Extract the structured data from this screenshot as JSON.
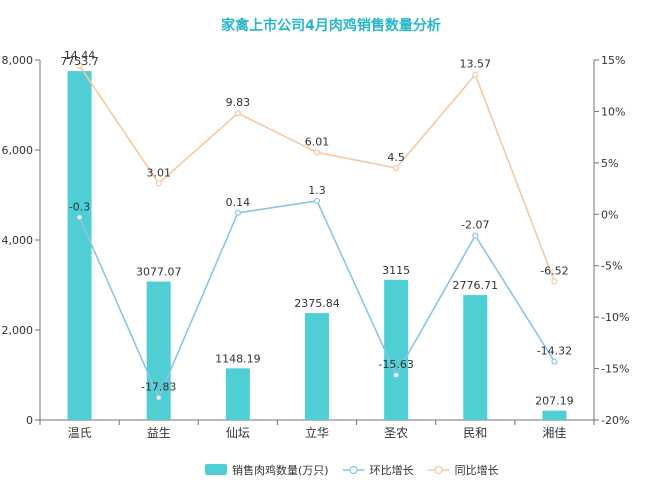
{
  "chart_data": {
    "type": "bar",
    "title": "家禽上市公司4月肉鸡销售数量分析",
    "categories": [
      "温氏",
      "益生",
      "仙坛",
      "立华",
      "圣农",
      "民和",
      "湘佳"
    ],
    "series": [
      {
        "name": "销售肉鸡数量(万只)",
        "type": "bar",
        "axis": "left",
        "color": "#4fcfd3",
        "values": [
          7753.7,
          3077.07,
          1148.19,
          2375.84,
          3115,
          2776.71,
          207.19
        ],
        "labels": [
          "7753.7",
          "3077.07",
          "1148.19",
          "2375.84",
          "3115",
          "2776.71",
          "207.19"
        ]
      },
      {
        "name": "环比增长",
        "type": "line",
        "axis": "right",
        "color": "#8cc4e8",
        "values": [
          -0.3,
          -17.83,
          0.14,
          1.3,
          -15.63,
          -2.07,
          -14.32
        ],
        "labels": [
          "-0.3",
          "-17.83",
          "0.14",
          "1.3",
          "-15.63",
          "-2.07",
          "-14.32"
        ]
      },
      {
        "name": "同比增长",
        "type": "line",
        "axis": "right",
        "color": "#f6c8a1",
        "values": [
          14.44,
          3.01,
          9.83,
          6.01,
          4.5,
          13.57,
          -6.52
        ],
        "labels": [
          "14.44",
          "3.01",
          "9.83",
          "6.01",
          "4.5",
          "13.57",
          "-6.52"
        ]
      }
    ],
    "y_left": {
      "min": 0,
      "max": 8000,
      "ticks": [
        0,
        2000,
        4000,
        6000,
        8000
      ],
      "tick_labels": [
        "0",
        "2,000",
        "4,000",
        "6,000",
        "8,000"
      ]
    },
    "y_right": {
      "min": -20,
      "max": 15,
      "ticks": [
        -20,
        -15,
        -10,
        -5,
        0,
        5,
        10,
        15
      ],
      "tick_labels": [
        "-20%",
        "-15%",
        "-10%",
        "-5%",
        "0%",
        "5%",
        "10%",
        "15%"
      ]
    },
    "grid": false,
    "legend_position": "bottom-center",
    "title_color": "#29b6c8"
  }
}
